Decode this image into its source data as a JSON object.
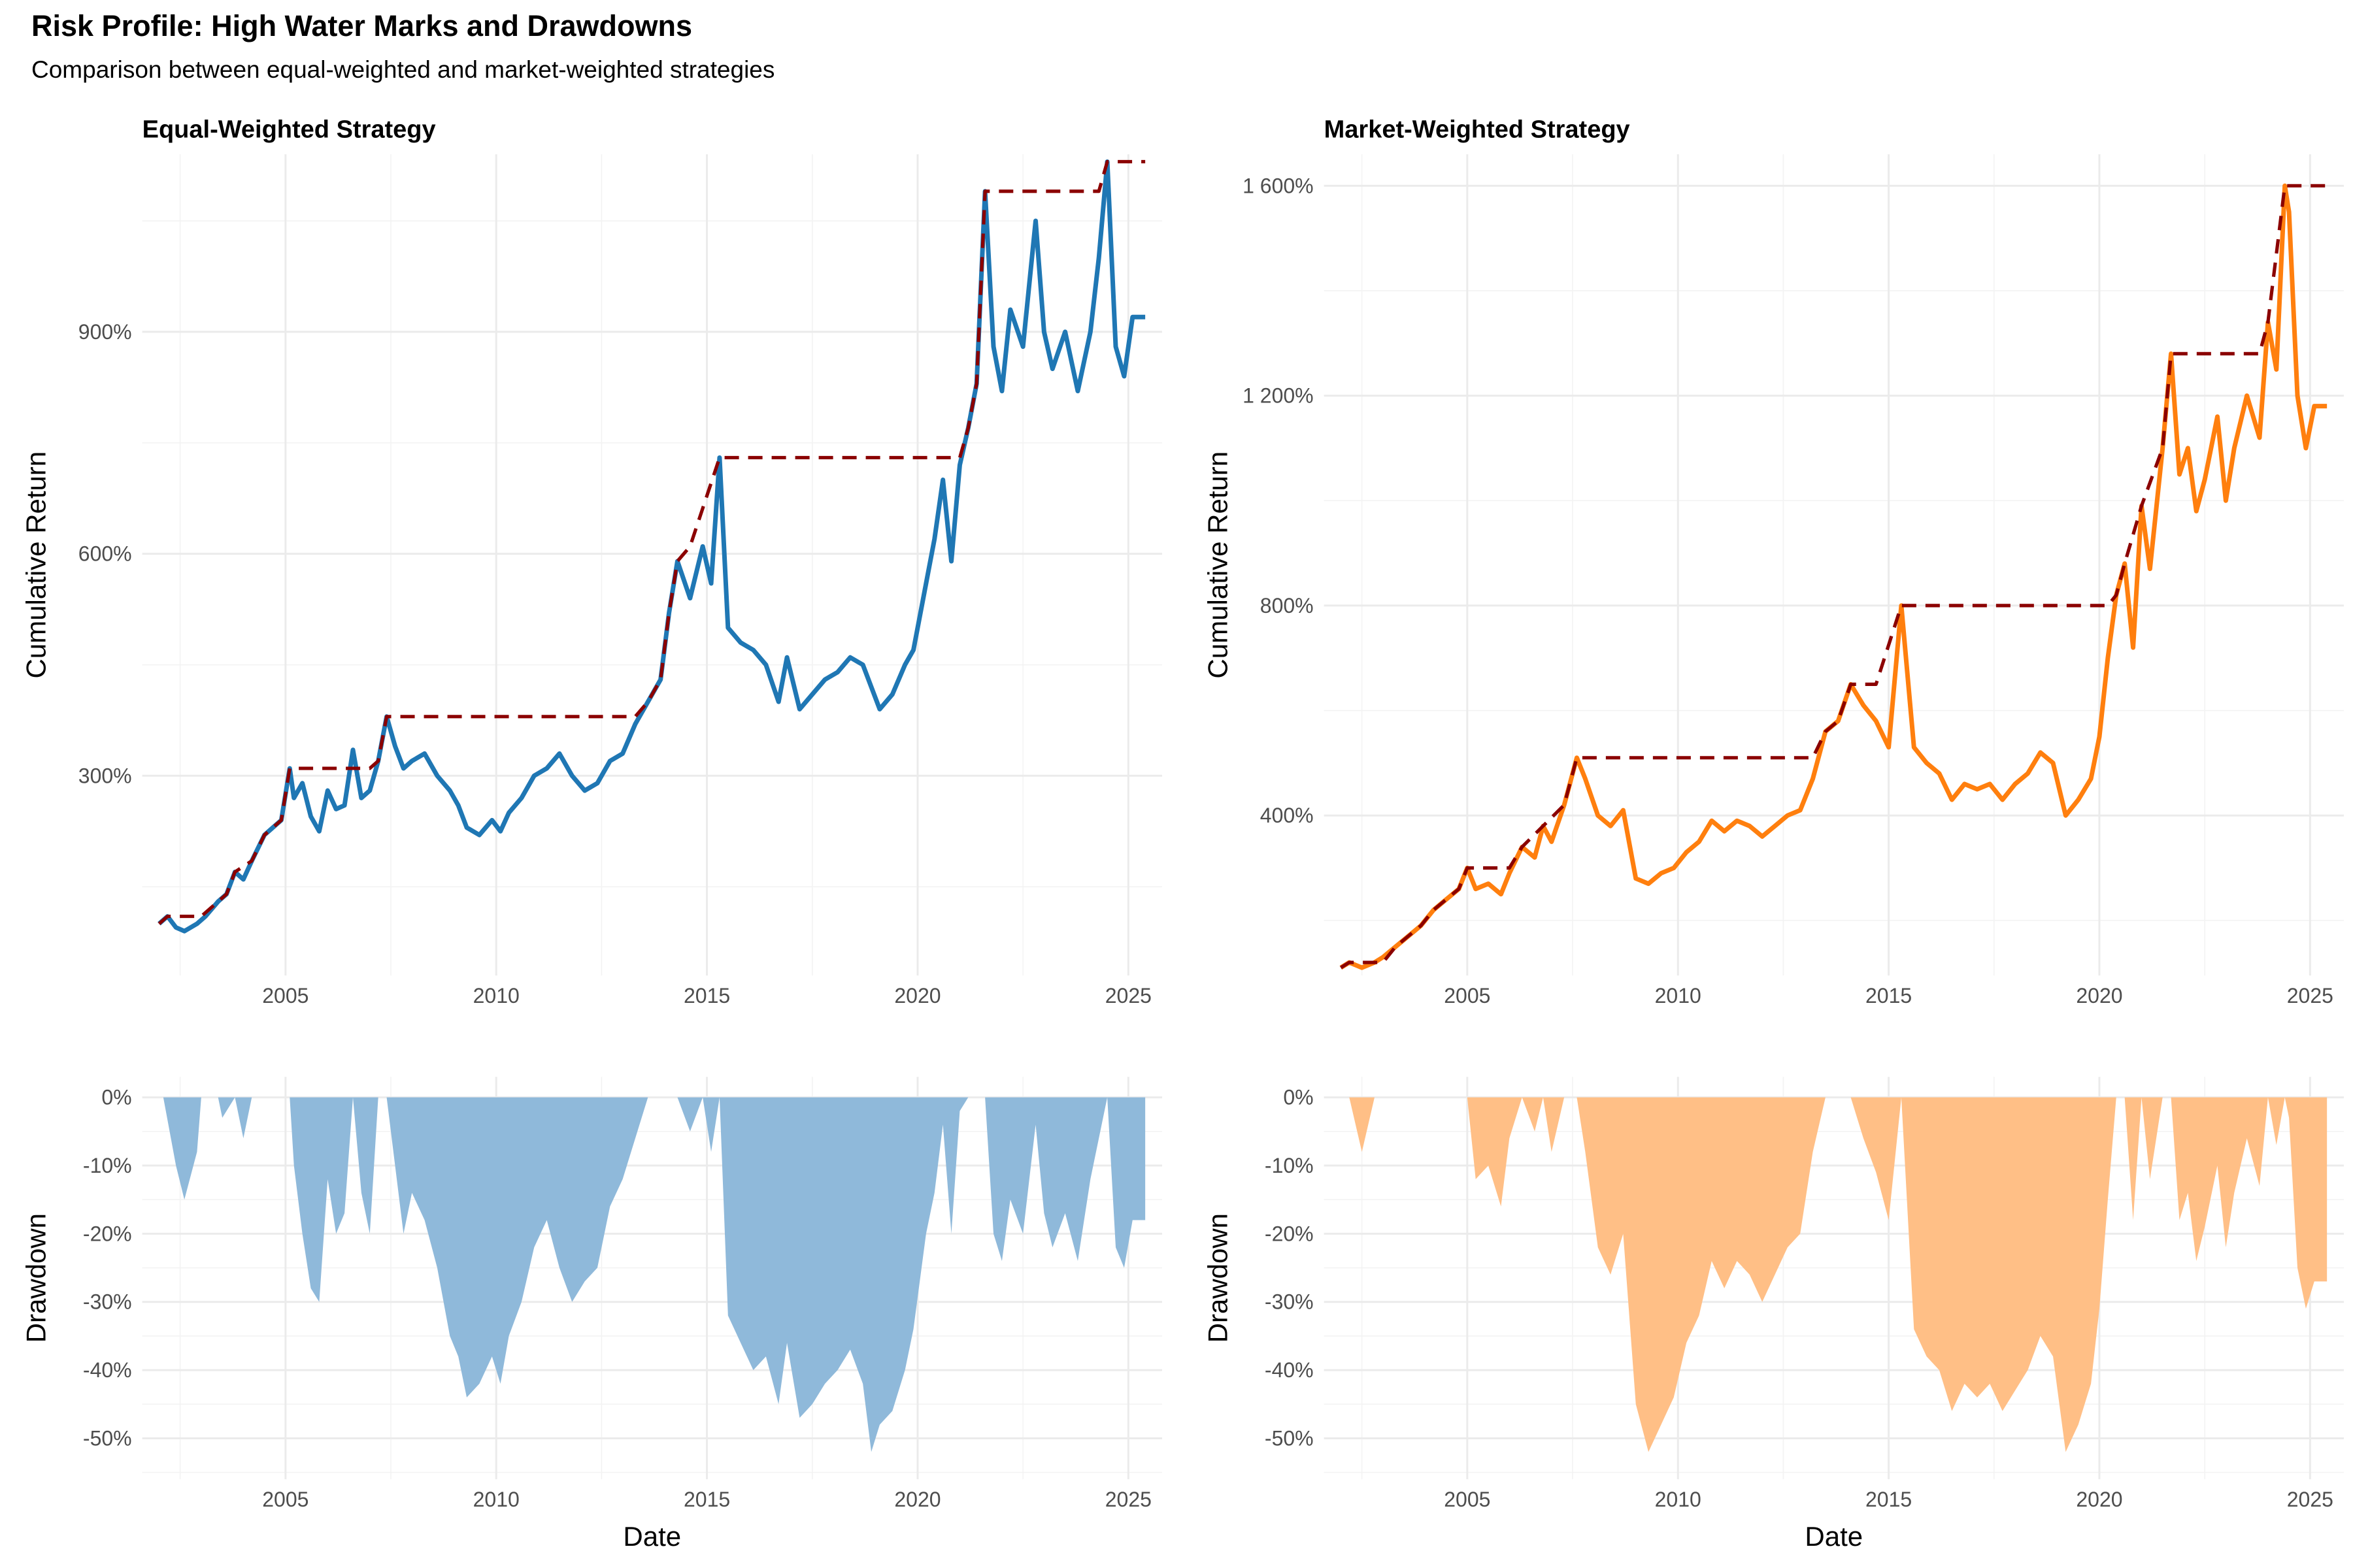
{
  "title": "Risk Profile: High Water Marks and Drawdowns",
  "subtitle": "Comparison between equal-weighted and market-weighted strategies",
  "colors": {
    "equal": "#1f77b4",
    "market": "#ff7f0e",
    "high_water_mark": "#8b0000",
    "equal_drawdown_fill": "#8fb9da",
    "market_drawdown_fill": "#ffbf86"
  },
  "chart_data": [
    {
      "type": "line",
      "panel": "Equal-Weighted Strategy",
      "title": "Equal-Weighted Strategy",
      "xlabel": "",
      "ylabel": "Cumulative Return",
      "x_ticks": [
        "2005",
        "2010",
        "2015",
        "2020",
        "2025"
      ],
      "y_ticks": [
        "300%",
        "600%",
        "900%"
      ],
      "ylim": [
        30,
        1140
      ],
      "xlim": [
        2001.6,
        2025.8
      ],
      "grid": true,
      "series": [
        {
          "name": "",
          "style": "solid",
          "color": "#1f77b4",
          "x": [
            2002.0,
            2002.2,
            2002.4,
            2002.6,
            2002.9,
            2003.1,
            2003.4,
            2003.6,
            2003.8,
            2004.0,
            2004.2,
            2004.5,
            2004.7,
            2004.9,
            2005.1,
            2005.2,
            2005.4,
            2005.6,
            2005.8,
            2006.0,
            2006.2,
            2006.4,
            2006.6,
            2006.8,
            2007.0,
            2007.2,
            2007.4,
            2007.6,
            2007.8,
            2008.0,
            2008.3,
            2008.6,
            2008.9,
            2009.1,
            2009.3,
            2009.6,
            2009.9,
            2010.1,
            2010.3,
            2010.6,
            2010.9,
            2011.2,
            2011.5,
            2011.8,
            2012.1,
            2012.4,
            2012.7,
            2013.0,
            2013.3,
            2013.6,
            2013.9,
            2014.1,
            2014.3,
            2014.6,
            2014.9,
            2015.1,
            2015.3,
            2015.5,
            2015.8,
            2016.1,
            2016.4,
            2016.7,
            2016.9,
            2017.2,
            2017.5,
            2017.8,
            2018.1,
            2018.4,
            2018.7,
            2018.9,
            2019.1,
            2019.4,
            2019.7,
            2019.9,
            2020.2,
            2020.4,
            2020.6,
            2020.8,
            2021.0,
            2021.2,
            2021.4,
            2021.6,
            2021.8,
            2022.0,
            2022.2,
            2022.5,
            2022.8,
            2023.0,
            2023.2,
            2023.5,
            2023.8,
            2024.1,
            2024.3,
            2024.5,
            2024.7,
            2024.9,
            2025.1,
            2025.4
          ],
          "y": [
            100,
            110,
            95,
            90,
            100,
            110,
            130,
            140,
            170,
            160,
            185,
            220,
            230,
            240,
            310,
            270,
            290,
            245,
            225,
            280,
            255,
            260,
            335,
            270,
            280,
            320,
            380,
            340,
            310,
            320,
            330,
            300,
            280,
            260,
            230,
            220,
            240,
            225,
            250,
            270,
            300,
            310,
            330,
            300,
            280,
            290,
            320,
            330,
            370,
            400,
            430,
            520,
            590,
            540,
            610,
            560,
            730,
            500,
            480,
            470,
            450,
            400,
            460,
            390,
            410,
            430,
            440,
            460,
            450,
            420,
            390,
            410,
            450,
            470,
            560,
            620,
            700,
            590,
            720,
            770,
            830,
            1090,
            880,
            820,
            930,
            880,
            1050,
            900,
            850,
            900,
            820,
            900,
            1000,
            1130,
            880,
            840,
            920,
            920
          ]
        },
        {
          "name": "",
          "style": "dashed",
          "color": "#8b0000",
          "x": [
            2002.0,
            2002.2,
            2003.0,
            2003.4,
            2003.6,
            2003.8,
            2004.2,
            2004.5,
            2004.7,
            2004.9,
            2005.1,
            2007.0,
            2007.2,
            2007.4,
            2007.6,
            2007.8,
            2013.0,
            2013.3,
            2013.6,
            2013.9,
            2014.1,
            2014.3,
            2014.6,
            2015.3,
            2020.6,
            2021.0,
            2021.2,
            2021.4,
            2021.6,
            2021.8,
            2024.3,
            2024.5,
            2025.4
          ],
          "y": [
            100,
            110,
            110,
            130,
            140,
            170,
            185,
            220,
            230,
            240,
            310,
            310,
            320,
            380,
            380,
            380,
            380,
            380,
            400,
            430,
            520,
            590,
            610,
            730,
            730,
            730,
            770,
            830,
            1090,
            1090,
            1090,
            1130,
            1130
          ]
        }
      ]
    },
    {
      "type": "line",
      "panel": "Market-Weighted Strategy",
      "title": "Market-Weighted Strategy",
      "xlabel": "",
      "ylabel": "Cumulative Return",
      "x_ticks": [
        "2005",
        "2010",
        "2015",
        "2020",
        "2025"
      ],
      "y_ticks": [
        "400%",
        "800%",
        "1 200%",
        "1 600%"
      ],
      "ylim": [
        95,
        1660
      ],
      "xlim": [
        2001.6,
        2025.8
      ],
      "grid": true,
      "series": [
        {
          "name": "",
          "style": "solid",
          "color": "#ff7f0e",
          "x": [
            2002.0,
            2002.2,
            2002.5,
            2002.8,
            2003.0,
            2003.3,
            2003.6,
            2003.9,
            2004.2,
            2004.5,
            2004.8,
            2005.0,
            2005.2,
            2005.5,
            2005.8,
            2006.0,
            2006.3,
            2006.6,
            2006.8,
            2007.0,
            2007.3,
            2007.6,
            2007.8,
            2008.1,
            2008.4,
            2008.7,
            2009.0,
            2009.3,
            2009.6,
            2009.9,
            2010.2,
            2010.5,
            2010.8,
            2011.1,
            2011.4,
            2011.7,
            2012.0,
            2012.3,
            2012.6,
            2012.9,
            2013.2,
            2013.5,
            2013.8,
            2014.1,
            2014.4,
            2014.7,
            2015.0,
            2015.3,
            2015.6,
            2015.9,
            2016.2,
            2016.5,
            2016.8,
            2017.1,
            2017.4,
            2017.7,
            2018.0,
            2018.3,
            2018.6,
            2018.9,
            2019.2,
            2019.5,
            2019.8,
            2020.0,
            2020.2,
            2020.4,
            2020.6,
            2020.8,
            2021.0,
            2021.2,
            2021.5,
            2021.7,
            2021.9,
            2022.1,
            2022.3,
            2022.5,
            2022.8,
            2023.0,
            2023.2,
            2023.5,
            2023.8,
            2024.0,
            2024.2,
            2024.4,
            2024.5,
            2024.7,
            2024.9,
            2025.1,
            2025.4
          ],
          "y": [
            110,
            120,
            110,
            120,
            130,
            150,
            170,
            190,
            220,
            240,
            260,
            300,
            260,
            270,
            250,
            290,
            340,
            320,
            380,
            350,
            420,
            510,
            470,
            400,
            380,
            410,
            280,
            270,
            290,
            300,
            330,
            350,
            390,
            370,
            390,
            380,
            360,
            380,
            400,
            410,
            470,
            560,
            580,
            650,
            610,
            580,
            530,
            800,
            530,
            500,
            480,
            430,
            460,
            450,
            460,
            430,
            460,
            480,
            520,
            500,
            400,
            430,
            470,
            550,
            700,
            820,
            880,
            720,
            990,
            870,
            1100,
            1280,
            1050,
            1100,
            980,
            1040,
            1160,
            1000,
            1100,
            1200,
            1120,
            1340,
            1250,
            1600,
            1550,
            1200,
            1100,
            1180,
            1180
          ]
        },
        {
          "name": "",
          "style": "dashed",
          "color": "#8b0000",
          "x": [
            2002.0,
            2002.2,
            2003.0,
            2003.3,
            2003.6,
            2003.9,
            2004.2,
            2004.5,
            2004.8,
            2005.0,
            2006.0,
            2006.3,
            2006.8,
            2007.3,
            2007.6,
            2013.2,
            2013.5,
            2013.8,
            2014.1,
            2014.7,
            2015.3,
            2020.2,
            2020.4,
            2020.6,
            2021.0,
            2021.5,
            2021.7,
            2023.8,
            2024.0,
            2024.4,
            2025.4
          ],
          "y": [
            110,
            120,
            120,
            150,
            170,
            190,
            220,
            240,
            260,
            300,
            300,
            340,
            380,
            420,
            510,
            510,
            560,
            580,
            650,
            650,
            800,
            800,
            820,
            880,
            990,
            1100,
            1280,
            1280,
            1340,
            1600,
            1600
          ]
        }
      ]
    },
    {
      "type": "area",
      "panel": "Equal-Weighted Drawdown",
      "xlabel": "Date",
      "ylabel": "Drawdown",
      "x_ticks": [
        "2005",
        "2010",
        "2015",
        "2020",
        "2025"
      ],
      "y_ticks": [
        "0%",
        "-10%",
        "-20%",
        "-30%",
        "-40%",
        "-50%"
      ],
      "ylim": [
        -56,
        3
      ],
      "xlim": [
        2001.6,
        2025.8
      ],
      "grid": true,
      "series": [
        {
          "name": "",
          "color": "#8fb9da",
          "x": [
            2002.0,
            2002.1,
            2002.4,
            2002.6,
            2002.9,
            2003.0,
            2003.4,
            2003.5,
            2003.8,
            2004.0,
            2004.2,
            2004.5,
            2004.7,
            2004.9,
            2005.1,
            2005.2,
            2005.4,
            2005.6,
            2005.8,
            2006.0,
            2006.2,
            2006.4,
            2006.6,
            2006.8,
            2007.0,
            2007.2,
            2007.4,
            2007.6,
            2007.8,
            2008.0,
            2008.3,
            2008.6,
            2008.9,
            2009.1,
            2009.3,
            2009.6,
            2009.9,
            2010.1,
            2010.3,
            2010.6,
            2010.9,
            2011.2,
            2011.5,
            2011.8,
            2012.1,
            2012.4,
            2012.7,
            2013.0,
            2013.3,
            2013.6,
            2013.9,
            2014.1,
            2014.3,
            2014.6,
            2014.9,
            2015.1,
            2015.3,
            2015.5,
            2015.8,
            2016.1,
            2016.4,
            2016.7,
            2016.9,
            2017.2,
            2017.5,
            2017.8,
            2018.1,
            2018.4,
            2018.7,
            2018.9,
            2019.1,
            2019.4,
            2019.7,
            2019.9,
            2020.2,
            2020.4,
            2020.6,
            2020.8,
            2021.0,
            2021.2,
            2021.4,
            2021.6,
            2021.8,
            2022.0,
            2022.2,
            2022.5,
            2022.8,
            2023.0,
            2023.2,
            2023.5,
            2023.8,
            2024.1,
            2024.3,
            2024.5,
            2024.7,
            2024.9,
            2025.1,
            2025.4
          ],
          "y": [
            0,
            0,
            -10,
            -15,
            -8,
            0,
            0,
            -3,
            0,
            -6,
            0,
            0,
            0,
            0,
            0,
            -10,
            -20,
            -28,
            -30,
            -12,
            -20,
            -17,
            0,
            -14,
            -20,
            0,
            0,
            -10,
            -20,
            -14,
            -18,
            -25,
            -35,
            -38,
            -44,
            -42,
            -38,
            -42,
            -35,
            -30,
            -22,
            -18,
            -25,
            -30,
            -27,
            -25,
            -16,
            -12,
            -6,
            0,
            0,
            0,
            0,
            -5,
            0,
            -8,
            0,
            -32,
            -36,
            -40,
            -38,
            -45,
            -36,
            -47,
            -45,
            -42,
            -40,
            -37,
            -42,
            -52,
            -48,
            -46,
            -40,
            -34,
            -20,
            -14,
            -4,
            -20,
            -2,
            0,
            0,
            0,
            -20,
            -24,
            -15,
            -20,
            -4,
            -17,
            -22,
            -17,
            -24,
            -12,
            -6,
            0,
            -22,
            -25,
            -18,
            -18
          ]
        }
      ]
    },
    {
      "type": "area",
      "panel": "Market-Weighted Drawdown",
      "xlabel": "Date",
      "ylabel": "Drawdown",
      "x_ticks": [
        "2005",
        "2010",
        "2015",
        "2020",
        "2025"
      ],
      "y_ticks": [
        "0%",
        "-10%",
        "-20%",
        "-30%",
        "-40%",
        "-50%"
      ],
      "ylim": [
        -56,
        3
      ],
      "xlim": [
        2001.6,
        2025.8
      ],
      "grid": true,
      "series": [
        {
          "name": "",
          "color": "#ffbf86",
          "x": [
            2002.0,
            2002.2,
            2002.5,
            2002.8,
            2003.0,
            2003.3,
            2003.6,
            2003.9,
            2004.2,
            2004.5,
            2004.8,
            2005.0,
            2005.2,
            2005.5,
            2005.8,
            2006.0,
            2006.3,
            2006.6,
            2006.8,
            2007.0,
            2007.3,
            2007.6,
            2007.8,
            2008.1,
            2008.4,
            2008.7,
            2009.0,
            2009.3,
            2009.6,
            2009.9,
            2010.2,
            2010.5,
            2010.8,
            2011.1,
            2011.4,
            2011.7,
            2012.0,
            2012.3,
            2012.6,
            2012.9,
            2013.2,
            2013.5,
            2013.8,
            2014.1,
            2014.4,
            2014.7,
            2015.0,
            2015.3,
            2015.6,
            2015.9,
            2016.2,
            2016.5,
            2016.8,
            2017.1,
            2017.4,
            2017.7,
            2018.0,
            2018.3,
            2018.6,
            2018.9,
            2019.2,
            2019.5,
            2019.8,
            2020.0,
            2020.2,
            2020.4,
            2020.6,
            2020.8,
            2021.0,
            2021.2,
            2021.5,
            2021.7,
            2021.9,
            2022.1,
            2022.3,
            2022.5,
            2022.8,
            2023.0,
            2023.2,
            2023.5,
            2023.8,
            2024.0,
            2024.2,
            2024.4,
            2024.5,
            2024.7,
            2024.9,
            2025.1,
            2025.4
          ],
          "y": [
            0,
            0,
            -8,
            0,
            0,
            0,
            0,
            0,
            0,
            0,
            0,
            0,
            -12,
            -10,
            -16,
            -6,
            0,
            -5,
            0,
            -8,
            0,
            0,
            -8,
            -22,
            -26,
            -20,
            -45,
            -52,
            -48,
            -44,
            -36,
            -32,
            -24,
            -28,
            -24,
            -26,
            -30,
            -26,
            -22,
            -20,
            -8,
            0,
            0,
            0,
            -6,
            -11,
            -18,
            0,
            -34,
            -38,
            -40,
            -46,
            -42,
            -44,
            -42,
            -46,
            -43,
            -40,
            -35,
            -38,
            -52,
            -48,
            -42,
            -31,
            -15,
            0,
            0,
            -18,
            0,
            -12,
            0,
            0,
            -18,
            -14,
            -24,
            -19,
            -10,
            -22,
            -14,
            -6,
            -13,
            0,
            -7,
            0,
            -3,
            -25,
            -31,
            -27,
            -27
          ]
        }
      ]
    }
  ]
}
